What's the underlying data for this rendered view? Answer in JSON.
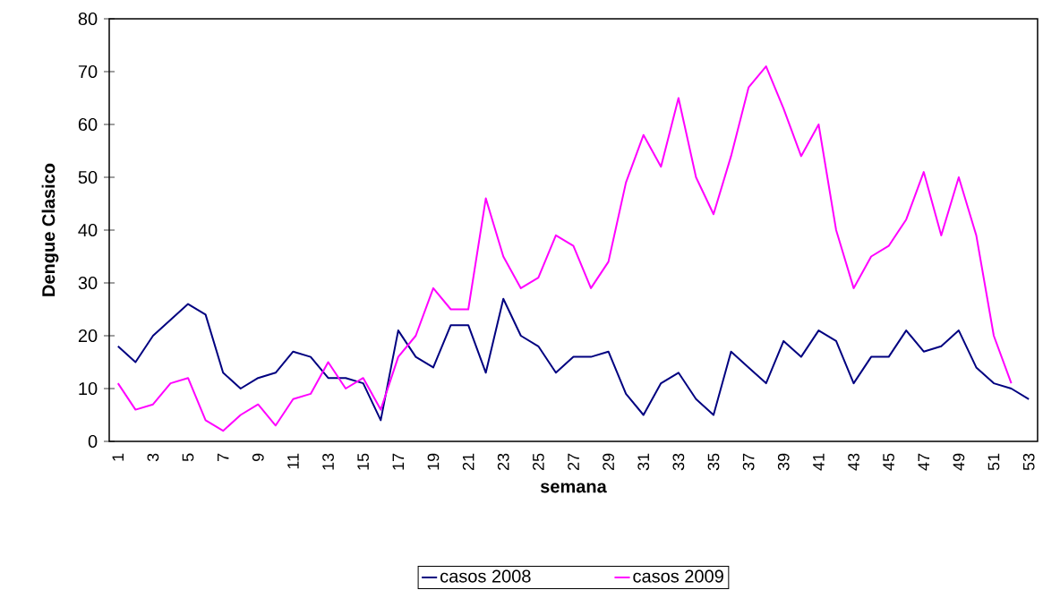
{
  "chart_data": {
    "type": "line",
    "xlabel": "semana",
    "ylabel": "Dengue Clasico",
    "categories": [
      "1",
      null,
      "3",
      null,
      "5",
      null,
      "7",
      null,
      "9",
      null,
      "11",
      null,
      "13",
      null,
      "15",
      null,
      "17",
      null,
      "19",
      null,
      "21",
      null,
      "23",
      null,
      "25",
      null,
      "27",
      null,
      "29",
      null,
      "31",
      null,
      "33",
      null,
      "35",
      null,
      "37",
      null,
      "39",
      null,
      "41",
      null,
      "43",
      null,
      "45",
      null,
      "47",
      null,
      "49",
      null,
      "51",
      null,
      "53"
    ],
    "series": [
      {
        "name": "casos 2008",
        "color": "#000080",
        "values": [
          18,
          15,
          20,
          23,
          26,
          24,
          13,
          10,
          12,
          13,
          17,
          16,
          12,
          12,
          11,
          4,
          21,
          16,
          14,
          22,
          22,
          13,
          27,
          20,
          18,
          13,
          16,
          16,
          17,
          9,
          5,
          11,
          13,
          8,
          5,
          17,
          14,
          11,
          19,
          16,
          21,
          19,
          11,
          16,
          16,
          21,
          17,
          18,
          21,
          14,
          11,
          10,
          8
        ]
      },
      {
        "name": "casos 2009",
        "color": "#ff00ff",
        "values": [
          11,
          6,
          7,
          11,
          12,
          4,
          2,
          5,
          7,
          3,
          8,
          9,
          15,
          10,
          12,
          6,
          16,
          20,
          29,
          25,
          25,
          46,
          35,
          29,
          31,
          39,
          37,
          29,
          34,
          49,
          58,
          52,
          65,
          50,
          43,
          54,
          67,
          71,
          63,
          54,
          60,
          40,
          29,
          35,
          37,
          42,
          51,
          39,
          50,
          39,
          20,
          11,
          null
        ]
      }
    ],
    "ylim": [
      0,
      80
    ],
    "yticks": [
      0,
      10,
      20,
      30,
      40,
      50,
      60,
      70,
      80
    ],
    "legend": "bottom",
    "marker": "none",
    "line_style": "solid",
    "grid": false
  }
}
